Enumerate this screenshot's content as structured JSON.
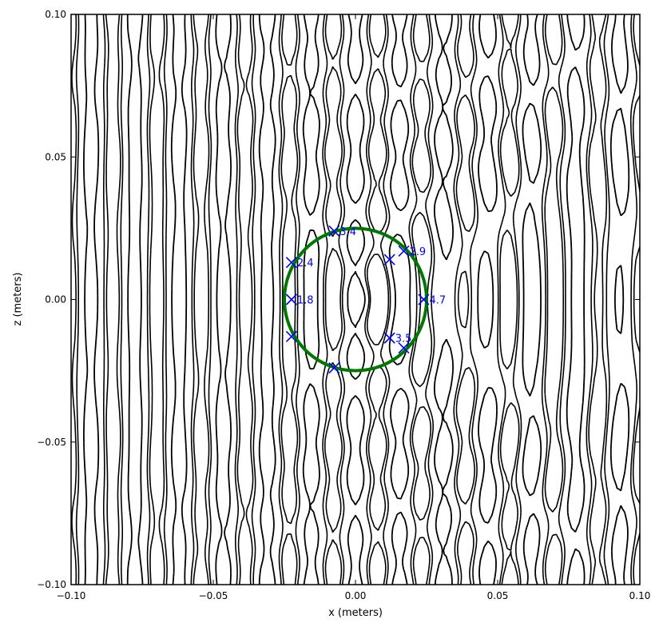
{
  "chart_data": {
    "type": "contour",
    "xlabel": "x (meters)",
    "ylabel": "z (meters)",
    "xlim": [
      -0.1,
      0.1
    ],
    "ylim": [
      -0.1,
      0.1
    ],
    "xticks": [
      -0.1,
      -0.05,
      0.0,
      0.05,
      0.1
    ],
    "yticks": [
      -0.1,
      -0.05,
      0.0,
      0.05,
      0.1
    ],
    "xtick_labels": [
      "−0.10",
      "−0.05",
      "0.00",
      "0.05",
      "0.10"
    ],
    "ytick_labels": [
      "−0.10",
      "−0.05",
      "0.00",
      "0.05",
      "0.10"
    ],
    "grid": false,
    "colors": {
      "contour": "#000000",
      "circle": "#007700",
      "markers": "#0000ff"
    },
    "circle": {
      "cx": 0.0,
      "cz": 0.0,
      "r": 0.025
    },
    "markers": [
      {
        "x": -0.0075,
        "z": 0.024,
        "label": "3.4"
      },
      {
        "x": 0.017,
        "z": 0.017,
        "label": "2.9"
      },
      {
        "x": 0.012,
        "z": 0.014,
        "label": ""
      },
      {
        "x": -0.0225,
        "z": 0.013,
        "label": "2.4"
      },
      {
        "x": -0.0225,
        "z": 0.0,
        "label": "1.8"
      },
      {
        "x": 0.024,
        "z": 0.0,
        "label": "4.7"
      },
      {
        "x": -0.0225,
        "z": -0.013,
        "label": ""
      },
      {
        "x": 0.012,
        "z": -0.0135,
        "label": "3.5"
      },
      {
        "x": 0.017,
        "z": -0.017,
        "label": ""
      },
      {
        "x": -0.0075,
        "z": -0.024,
        "label": ""
      }
    ],
    "contour_field": {
      "incident_wavelength": 0.0155,
      "scatter_wavelength": 0.021,
      "scatter_center_x": 0.0,
      "scatter_strength": 0.75,
      "levels_positive": [
        0.55
      ],
      "levels_negative": [
        -0.25,
        -0.55
      ]
    }
  }
}
